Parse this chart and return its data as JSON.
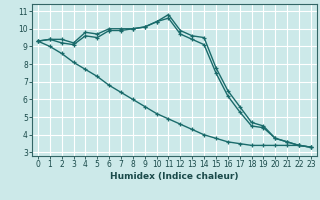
{
  "xlabel": "Humidex (Indice chaleur)",
  "bg_color": "#cce9e9",
  "grid_color": "#ffffff",
  "line_color": "#1a6b6b",
  "xlim": [
    -0.5,
    23.5
  ],
  "ylim": [
    2.8,
    11.4
  ],
  "yticks": [
    3,
    4,
    5,
    6,
    7,
    8,
    9,
    10,
    11
  ],
  "xticks": [
    0,
    1,
    2,
    3,
    4,
    5,
    6,
    7,
    8,
    9,
    10,
    11,
    12,
    13,
    14,
    15,
    16,
    17,
    18,
    19,
    20,
    21,
    22,
    23
  ],
  "line1_x": [
    0,
    1,
    2,
    3,
    4,
    5,
    6,
    7,
    8,
    9,
    10,
    11,
    12,
    13,
    14,
    15,
    16,
    17,
    18,
    19,
    20,
    21,
    22,
    23
  ],
  "line1_y": [
    9.3,
    9.4,
    9.4,
    9.2,
    9.8,
    9.7,
    10.0,
    10.0,
    10.0,
    10.1,
    10.4,
    10.8,
    9.9,
    9.6,
    9.5,
    7.8,
    6.5,
    5.6,
    4.7,
    4.5,
    3.8,
    3.6,
    3.4,
    3.3
  ],
  "line2_x": [
    0,
    1,
    2,
    3,
    4,
    5,
    6,
    7,
    8,
    9,
    10,
    11,
    12,
    13,
    14,
    15,
    16,
    17,
    18,
    19,
    20,
    21,
    22,
    23
  ],
  "line2_y": [
    9.3,
    9.4,
    9.2,
    9.1,
    9.6,
    9.5,
    9.9,
    9.9,
    10.0,
    10.1,
    10.4,
    10.6,
    9.7,
    9.4,
    9.1,
    7.5,
    6.2,
    5.3,
    4.5,
    4.4,
    3.8,
    3.6,
    3.4,
    3.3
  ],
  "line3_x": [
    0,
    1,
    2,
    3,
    4,
    5,
    6,
    7,
    8,
    9,
    10,
    11,
    12,
    13,
    14,
    15,
    16,
    17,
    18,
    19,
    20,
    21,
    22,
    23
  ],
  "line3_y": [
    9.3,
    9.0,
    8.6,
    8.1,
    7.7,
    7.3,
    6.8,
    6.4,
    6.0,
    5.6,
    5.2,
    4.9,
    4.6,
    4.3,
    4.0,
    3.8,
    3.6,
    3.5,
    3.4,
    3.4,
    3.4,
    3.4,
    3.4,
    3.3
  ],
  "tick_fontsize": 5.5,
  "xlabel_fontsize": 6.5
}
